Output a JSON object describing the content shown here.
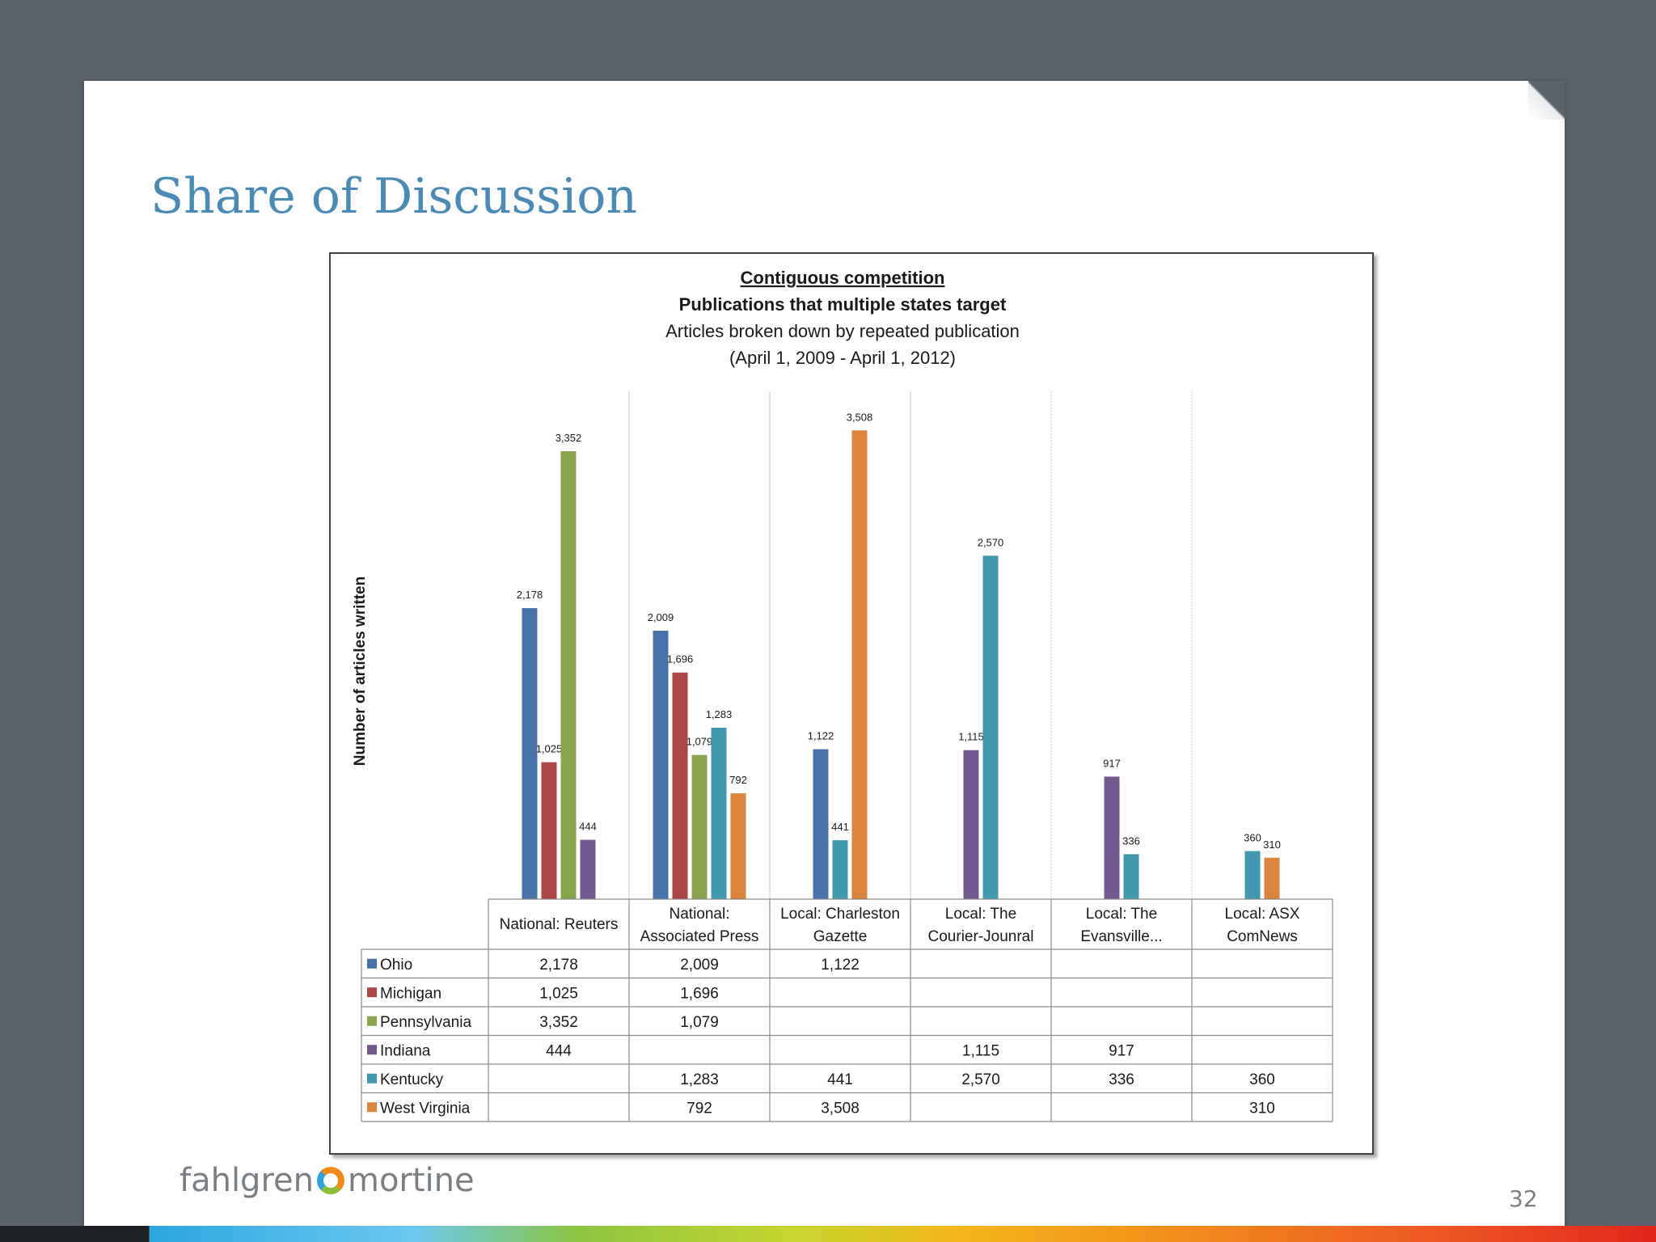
{
  "slide": {
    "title": "Share of Discussion",
    "page_number": "32",
    "brand_left": "fahlgren",
    "brand_right": "mortine"
  },
  "colors": {
    "background": "#5b636b",
    "title": "#4a8bb5",
    "Ohio": "#4572a7",
    "Michigan": "#aa4643",
    "Pennsylvania": "#89a54e",
    "Indiana": "#71588f",
    "Kentucky": "#4198af",
    "West Virginia": "#db843d"
  },
  "chart_data": {
    "type": "bar",
    "title": "Contiguous competition",
    "subtitle": "Publications that multiple states target",
    "subtitle2": "Articles broken down by repeated publication",
    "subtitle3": "(April 1, 2009 -  April 1, 2012)",
    "ylabel": "Number of articles written",
    "xlabel": "",
    "ylim": [
      0,
      3800
    ],
    "grid": false,
    "legend": "data-table",
    "categories": [
      [
        "National: Reuters"
      ],
      [
        "National:",
        "Associated Press"
      ],
      [
        "Local: Charleston",
        "Gazette"
      ],
      [
        "Local: The",
        "Courier-Jounral"
      ],
      [
        "Local: The",
        "Evansville..."
      ],
      [
        "Local: ASX",
        "ComNews"
      ]
    ],
    "series": [
      {
        "name": "Ohio",
        "values": [
          2178,
          2009,
          1122,
          null,
          null,
          null
        ],
        "labels": [
          "2,178",
          "2,009",
          "1,122",
          "",
          "",
          ""
        ]
      },
      {
        "name": "Michigan",
        "values": [
          1025,
          1696,
          null,
          null,
          null,
          null
        ],
        "labels": [
          "1,025",
          "1,696",
          "",
          "",
          "",
          ""
        ]
      },
      {
        "name": "Pennsylvania",
        "values": [
          3352,
          1079,
          null,
          null,
          null,
          null
        ],
        "labels": [
          "3,352",
          "1,079",
          "",
          "",
          "",
          ""
        ]
      },
      {
        "name": "Indiana",
        "values": [
          444,
          null,
          null,
          1115,
          917,
          null
        ],
        "labels": [
          "444",
          "",
          "",
          "1,115",
          "917",
          ""
        ]
      },
      {
        "name": "Kentucky",
        "values": [
          null,
          1283,
          441,
          2570,
          336,
          360
        ],
        "labels": [
          "",
          "1,283",
          "441",
          "2,570",
          "336",
          "360"
        ]
      },
      {
        "name": "West Virginia",
        "values": [
          null,
          792,
          3508,
          null,
          null,
          310
        ],
        "labels": [
          "",
          "792",
          "3,508",
          "",
          "",
          "310"
        ]
      }
    ]
  }
}
